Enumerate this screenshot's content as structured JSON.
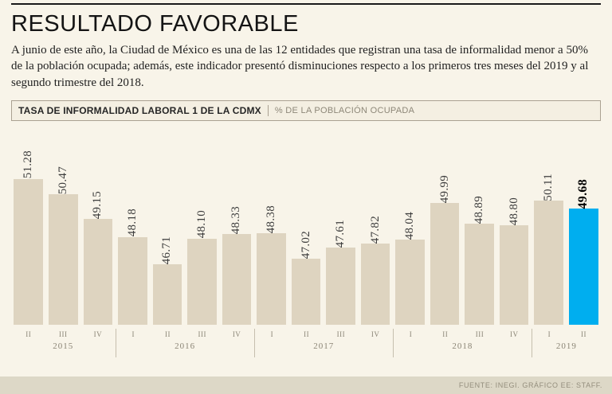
{
  "header": {
    "title": "RESULTADO FAVORABLE",
    "description": "A junio de este año, la Ciudad de México es una de las 12 entidades que registran una tasa de informalidad menor a 50% de la población ocupada; además, este indicador presentó disminuciones respecto a los primeros tres meses del 2019 y al segundo trimestre del 2018."
  },
  "chart_header": {
    "title": "TASA DE INFORMALIDAD LABORAL 1 DE LA CDMX",
    "unit": "% DE LA POBLACIÓN OCUPADA"
  },
  "chart_data": {
    "type": "bar",
    "title": "TASA DE INFORMALIDAD LABORAL 1 DE LA CDMX",
    "ylabel": "% DE LA POBLACIÓN OCUPADA",
    "categories": [
      "II",
      "III",
      "IV",
      "I",
      "II",
      "III",
      "IV",
      "I",
      "II",
      "III",
      "IV",
      "I",
      "II",
      "III",
      "IV",
      "I",
      "II"
    ],
    "values": [
      51.28,
      50.47,
      49.15,
      48.18,
      46.71,
      48.1,
      48.33,
      48.38,
      47.02,
      47.61,
      47.82,
      48.04,
      49.99,
      48.89,
      48.8,
      50.11,
      49.68
    ],
    "year_groups": [
      {
        "year": "2015",
        "count": 3
      },
      {
        "year": "2016",
        "count": 4
      },
      {
        "year": "2017",
        "count": 4
      },
      {
        "year": "2018",
        "count": 4
      },
      {
        "year": "2019",
        "count": 2
      }
    ],
    "highlight_index": 16,
    "ylim": [
      43.5,
      52
    ],
    "grid": false,
    "legend": "none",
    "bar_color": "#ded4c0",
    "highlight_color": "#00aeef"
  },
  "footer": {
    "source": "FUENTE: INEGI. GRÁFICO EE: STAFF."
  }
}
